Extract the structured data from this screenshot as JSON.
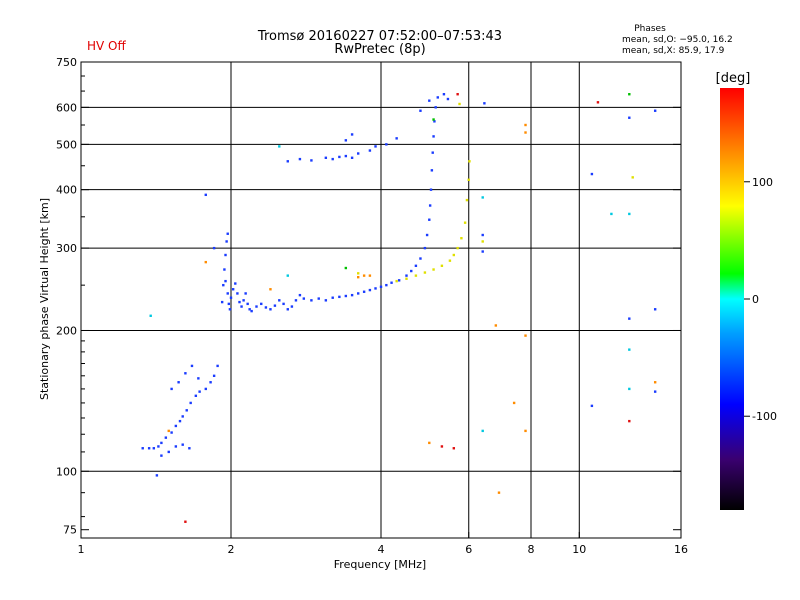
{
  "status_label": "HV Off",
  "chart_data": {
    "type": "scatter",
    "title": "Tromsø 20160227 07:52:00–07:53:43",
    "subtitle": "RwPretec (8p)",
    "xlabel": "Frequency [MHz]",
    "ylabel": "Stationary phase Virtual Height [km]",
    "x_scale": "log",
    "y_scale": "log",
    "xlim": [
      1,
      16
    ],
    "ylim": [
      72,
      750
    ],
    "x_ticks": [
      1,
      2,
      4,
      6,
      8,
      10,
      16
    ],
    "y_ticks": [
      75,
      100,
      200,
      300,
      400,
      500,
      600,
      750
    ],
    "x_grid": [
      2,
      4,
      6,
      8,
      10
    ],
    "y_grid": [
      100,
      200,
      300,
      400,
      500,
      600
    ],
    "grid": true,
    "phases_title": "Phases",
    "phases_stats": [
      "mean, sd,O: −95.0, 16.2",
      "mean, sd,X:  85.9, 17.9"
    ],
    "colorbar": {
      "label": "[deg]",
      "range": [
        -180,
        180
      ],
      "ticks": [
        100,
        0,
        -100
      ],
      "colors": [
        "#000000",
        "#3a0070",
        "#0000ff",
        "#00a0ff",
        "#00ffff",
        "#00ff00",
        "#ffff00",
        "#ff8000",
        "#ff0000"
      ]
    },
    "series": [
      {
        "color": "#1a3cff",
        "points": [
          [
            1.33,
            112
          ],
          [
            1.37,
            112
          ],
          [
            1.4,
            112
          ],
          [
            1.43,
            113
          ],
          [
            1.45,
            115
          ],
          [
            1.48,
            118
          ],
          [
            1.52,
            121
          ],
          [
            1.55,
            125
          ],
          [
            1.58,
            128
          ],
          [
            1.6,
            131
          ],
          [
            1.63,
            135
          ],
          [
            1.66,
            140
          ],
          [
            1.7,
            145
          ],
          [
            1.73,
            148
          ],
          [
            1.45,
            108
          ],
          [
            1.5,
            110
          ],
          [
            1.55,
            113
          ],
          [
            1.6,
            114
          ],
          [
            1.65,
            112
          ],
          [
            1.52,
            150
          ],
          [
            1.57,
            155
          ],
          [
            1.62,
            162
          ],
          [
            1.67,
            168
          ],
          [
            1.72,
            158
          ],
          [
            1.78,
            150
          ],
          [
            1.82,
            155
          ],
          [
            1.85,
            160
          ],
          [
            1.88,
            168
          ],
          [
            1.42,
            98
          ],
          [
            1.92,
            230
          ],
          [
            1.93,
            250
          ],
          [
            1.94,
            270
          ],
          [
            1.95,
            290
          ],
          [
            1.96,
            310
          ],
          [
            1.97,
            322
          ],
          [
            1.95,
            255
          ],
          [
            1.97,
            240
          ],
          [
            1.98,
            228
          ],
          [
            1.99,
            222
          ],
          [
            2.0,
            235
          ],
          [
            2.02,
            245
          ],
          [
            2.04,
            252
          ],
          [
            2.06,
            240
          ],
          [
            2.08,
            230
          ],
          [
            2.1,
            225
          ],
          [
            2.12,
            232
          ],
          [
            2.14,
            240
          ],
          [
            2.16,
            228
          ],
          [
            2.18,
            222
          ],
          [
            2.2,
            220
          ],
          [
            2.25,
            225
          ],
          [
            2.3,
            228
          ],
          [
            2.35,
            224
          ],
          [
            2.4,
            222
          ],
          [
            2.45,
            226
          ],
          [
            2.5,
            232
          ],
          [
            2.55,
            228
          ],
          [
            2.6,
            222
          ],
          [
            2.65,
            225
          ],
          [
            2.7,
            232
          ],
          [
            2.75,
            238
          ],
          [
            2.8,
            234
          ],
          [
            2.9,
            232
          ],
          [
            3.0,
            234
          ],
          [
            3.1,
            232
          ],
          [
            3.2,
            235
          ],
          [
            3.3,
            236
          ],
          [
            3.4,
            237
          ],
          [
            3.5,
            238
          ],
          [
            3.6,
            240
          ],
          [
            3.7,
            242
          ],
          [
            3.8,
            244
          ],
          [
            3.9,
            246
          ],
          [
            4.0,
            248
          ],
          [
            4.1,
            250
          ],
          [
            4.2,
            253
          ],
          [
            4.35,
            256
          ],
          [
            4.5,
            262
          ],
          [
            4.6,
            268
          ],
          [
            4.7,
            275
          ],
          [
            4.8,
            285
          ],
          [
            4.9,
            300
          ],
          [
            4.95,
            320
          ],
          [
            5.0,
            345
          ],
          [
            5.02,
            370
          ],
          [
            5.04,
            400
          ],
          [
            5.06,
            440
          ],
          [
            5.08,
            480
          ],
          [
            5.1,
            520
          ],
          [
            5.12,
            560
          ],
          [
            5.15,
            600
          ],
          [
            5.2,
            630
          ],
          [
            1.78,
            390
          ],
          [
            1.85,
            300
          ],
          [
            2.6,
            460
          ],
          [
            2.75,
            465
          ],
          [
            2.9,
            462
          ],
          [
            3.1,
            468
          ],
          [
            3.2,
            465
          ],
          [
            3.3,
            470
          ],
          [
            3.4,
            472
          ],
          [
            3.5,
            468
          ],
          [
            3.6,
            478
          ],
          [
            3.8,
            485
          ],
          [
            3.4,
            510
          ],
          [
            3.5,
            525
          ],
          [
            3.9,
            495
          ],
          [
            4.1,
            500
          ],
          [
            4.3,
            515
          ],
          [
            4.8,
            590
          ],
          [
            5.0,
            620
          ],
          [
            5.35,
            640
          ],
          [
            5.45,
            625
          ],
          [
            6.4,
            320
          ],
          [
            6.4,
            295
          ],
          [
            6.45,
            612
          ],
          [
            10.6,
            432
          ],
          [
            10.6,
            138
          ],
          [
            12.6,
            570
          ],
          [
            12.6,
            212
          ],
          [
            14.2,
            590
          ],
          [
            14.2,
            222
          ],
          [
            14.2,
            148
          ]
        ]
      },
      {
        "color": "#e0e000",
        "points": [
          [
            4.3,
            255
          ],
          [
            4.5,
            258
          ],
          [
            4.7,
            262
          ],
          [
            4.9,
            266
          ],
          [
            5.1,
            270
          ],
          [
            5.3,
            275
          ],
          [
            5.5,
            282
          ],
          [
            5.6,
            290
          ],
          [
            5.7,
            300
          ],
          [
            5.8,
            315
          ],
          [
            5.9,
            340
          ],
          [
            5.95,
            380
          ],
          [
            6.0,
            420
          ],
          [
            6.02,
            460
          ],
          [
            5.75,
            610
          ],
          [
            6.4,
            310
          ],
          [
            12.8,
            425
          ],
          [
            3.6,
            265
          ]
        ]
      },
      {
        "color": "#00c8e0",
        "points": [
          [
            1.38,
            215
          ],
          [
            2.5,
            495
          ],
          [
            2.6,
            262
          ],
          [
            6.4,
            122
          ],
          [
            6.4,
            385
          ],
          [
            11.6,
            355
          ],
          [
            12.6,
            355
          ],
          [
            12.6,
            182
          ],
          [
            12.6,
            150
          ]
        ]
      },
      {
        "color": "#ff8c00",
        "points": [
          [
            1.78,
            280
          ],
          [
            1.5,
            122
          ],
          [
            3.6,
            260
          ],
          [
            3.7,
            262
          ],
          [
            3.8,
            262
          ],
          [
            5.0,
            115
          ],
          [
            6.8,
            205
          ],
          [
            7.4,
            140
          ],
          [
            7.8,
            530
          ],
          [
            7.8,
            550
          ],
          [
            7.8,
            122
          ],
          [
            7.8,
            195
          ],
          [
            6.9,
            90
          ],
          [
            14.2,
            155
          ],
          [
            2.4,
            245
          ]
        ]
      },
      {
        "color": "#e01010",
        "points": [
          [
            1.62,
            78
          ],
          [
            5.6,
            112
          ],
          [
            5.3,
            113
          ],
          [
            5.7,
            640
          ],
          [
            10.9,
            615
          ],
          [
            12.6,
            128
          ]
        ]
      },
      {
        "color": "#00c000",
        "points": [
          [
            3.4,
            272
          ],
          [
            5.1,
            565
          ],
          [
            12.6,
            640
          ]
        ]
      }
    ]
  }
}
